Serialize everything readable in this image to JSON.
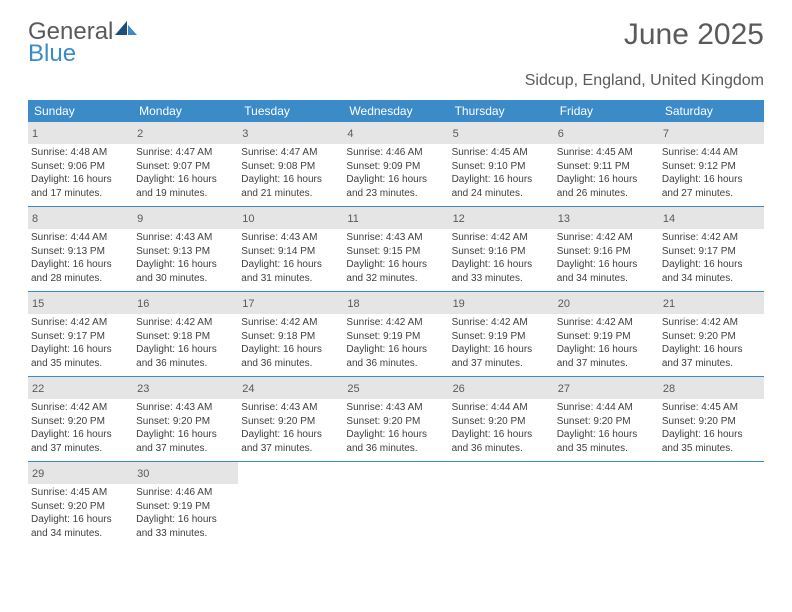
{
  "logo": {
    "text1": "General",
    "text2": "Blue",
    "text1_color": "#5a5a5a",
    "text2_color": "#3b8bc9"
  },
  "header": {
    "title": "June 2025",
    "location": "Sidcup, England, United Kingdom",
    "title_fontsize": 30,
    "location_fontsize": 16,
    "text_color": "#5a5a5a"
  },
  "calendar": {
    "header_bg": "#3b8bc9",
    "header_fg": "#ffffff",
    "daynum_bg": "#e5e5e5",
    "border_color": "#3b8bc9",
    "text_color": "#404040",
    "day_labels": [
      "Sunday",
      "Monday",
      "Tuesday",
      "Wednesday",
      "Thursday",
      "Friday",
      "Saturday"
    ],
    "weeks": [
      [
        {
          "n": "1",
          "sunrise": "Sunrise: 4:48 AM",
          "sunset": "Sunset: 9:06 PM",
          "dl1": "Daylight: 16 hours",
          "dl2": "and 17 minutes."
        },
        {
          "n": "2",
          "sunrise": "Sunrise: 4:47 AM",
          "sunset": "Sunset: 9:07 PM",
          "dl1": "Daylight: 16 hours",
          "dl2": "and 19 minutes."
        },
        {
          "n": "3",
          "sunrise": "Sunrise: 4:47 AM",
          "sunset": "Sunset: 9:08 PM",
          "dl1": "Daylight: 16 hours",
          "dl2": "and 21 minutes."
        },
        {
          "n": "4",
          "sunrise": "Sunrise: 4:46 AM",
          "sunset": "Sunset: 9:09 PM",
          "dl1": "Daylight: 16 hours",
          "dl2": "and 23 minutes."
        },
        {
          "n": "5",
          "sunrise": "Sunrise: 4:45 AM",
          "sunset": "Sunset: 9:10 PM",
          "dl1": "Daylight: 16 hours",
          "dl2": "and 24 minutes."
        },
        {
          "n": "6",
          "sunrise": "Sunrise: 4:45 AM",
          "sunset": "Sunset: 9:11 PM",
          "dl1": "Daylight: 16 hours",
          "dl2": "and 26 minutes."
        },
        {
          "n": "7",
          "sunrise": "Sunrise: 4:44 AM",
          "sunset": "Sunset: 9:12 PM",
          "dl1": "Daylight: 16 hours",
          "dl2": "and 27 minutes."
        }
      ],
      [
        {
          "n": "8",
          "sunrise": "Sunrise: 4:44 AM",
          "sunset": "Sunset: 9:13 PM",
          "dl1": "Daylight: 16 hours",
          "dl2": "and 28 minutes."
        },
        {
          "n": "9",
          "sunrise": "Sunrise: 4:43 AM",
          "sunset": "Sunset: 9:13 PM",
          "dl1": "Daylight: 16 hours",
          "dl2": "and 30 minutes."
        },
        {
          "n": "10",
          "sunrise": "Sunrise: 4:43 AM",
          "sunset": "Sunset: 9:14 PM",
          "dl1": "Daylight: 16 hours",
          "dl2": "and 31 minutes."
        },
        {
          "n": "11",
          "sunrise": "Sunrise: 4:43 AM",
          "sunset": "Sunset: 9:15 PM",
          "dl1": "Daylight: 16 hours",
          "dl2": "and 32 minutes."
        },
        {
          "n": "12",
          "sunrise": "Sunrise: 4:42 AM",
          "sunset": "Sunset: 9:16 PM",
          "dl1": "Daylight: 16 hours",
          "dl2": "and 33 minutes."
        },
        {
          "n": "13",
          "sunrise": "Sunrise: 4:42 AM",
          "sunset": "Sunset: 9:16 PM",
          "dl1": "Daylight: 16 hours",
          "dl2": "and 34 minutes."
        },
        {
          "n": "14",
          "sunrise": "Sunrise: 4:42 AM",
          "sunset": "Sunset: 9:17 PM",
          "dl1": "Daylight: 16 hours",
          "dl2": "and 34 minutes."
        }
      ],
      [
        {
          "n": "15",
          "sunrise": "Sunrise: 4:42 AM",
          "sunset": "Sunset: 9:17 PM",
          "dl1": "Daylight: 16 hours",
          "dl2": "and 35 minutes."
        },
        {
          "n": "16",
          "sunrise": "Sunrise: 4:42 AM",
          "sunset": "Sunset: 9:18 PM",
          "dl1": "Daylight: 16 hours",
          "dl2": "and 36 minutes."
        },
        {
          "n": "17",
          "sunrise": "Sunrise: 4:42 AM",
          "sunset": "Sunset: 9:18 PM",
          "dl1": "Daylight: 16 hours",
          "dl2": "and 36 minutes."
        },
        {
          "n": "18",
          "sunrise": "Sunrise: 4:42 AM",
          "sunset": "Sunset: 9:19 PM",
          "dl1": "Daylight: 16 hours",
          "dl2": "and 36 minutes."
        },
        {
          "n": "19",
          "sunrise": "Sunrise: 4:42 AM",
          "sunset": "Sunset: 9:19 PM",
          "dl1": "Daylight: 16 hours",
          "dl2": "and 37 minutes."
        },
        {
          "n": "20",
          "sunrise": "Sunrise: 4:42 AM",
          "sunset": "Sunset: 9:19 PM",
          "dl1": "Daylight: 16 hours",
          "dl2": "and 37 minutes."
        },
        {
          "n": "21",
          "sunrise": "Sunrise: 4:42 AM",
          "sunset": "Sunset: 9:20 PM",
          "dl1": "Daylight: 16 hours",
          "dl2": "and 37 minutes."
        }
      ],
      [
        {
          "n": "22",
          "sunrise": "Sunrise: 4:42 AM",
          "sunset": "Sunset: 9:20 PM",
          "dl1": "Daylight: 16 hours",
          "dl2": "and 37 minutes."
        },
        {
          "n": "23",
          "sunrise": "Sunrise: 4:43 AM",
          "sunset": "Sunset: 9:20 PM",
          "dl1": "Daylight: 16 hours",
          "dl2": "and 37 minutes."
        },
        {
          "n": "24",
          "sunrise": "Sunrise: 4:43 AM",
          "sunset": "Sunset: 9:20 PM",
          "dl1": "Daylight: 16 hours",
          "dl2": "and 37 minutes."
        },
        {
          "n": "25",
          "sunrise": "Sunrise: 4:43 AM",
          "sunset": "Sunset: 9:20 PM",
          "dl1": "Daylight: 16 hours",
          "dl2": "and 36 minutes."
        },
        {
          "n": "26",
          "sunrise": "Sunrise: 4:44 AM",
          "sunset": "Sunset: 9:20 PM",
          "dl1": "Daylight: 16 hours",
          "dl2": "and 36 minutes."
        },
        {
          "n": "27",
          "sunrise": "Sunrise: 4:44 AM",
          "sunset": "Sunset: 9:20 PM",
          "dl1": "Daylight: 16 hours",
          "dl2": "and 35 minutes."
        },
        {
          "n": "28",
          "sunrise": "Sunrise: 4:45 AM",
          "sunset": "Sunset: 9:20 PM",
          "dl1": "Daylight: 16 hours",
          "dl2": "and 35 minutes."
        }
      ],
      [
        {
          "n": "29",
          "sunrise": "Sunrise: 4:45 AM",
          "sunset": "Sunset: 9:20 PM",
          "dl1": "Daylight: 16 hours",
          "dl2": "and 34 minutes."
        },
        {
          "n": "30",
          "sunrise": "Sunrise: 4:46 AM",
          "sunset": "Sunset: 9:19 PM",
          "dl1": "Daylight: 16 hours",
          "dl2": "and 33 minutes."
        },
        null,
        null,
        null,
        null,
        null
      ]
    ]
  }
}
